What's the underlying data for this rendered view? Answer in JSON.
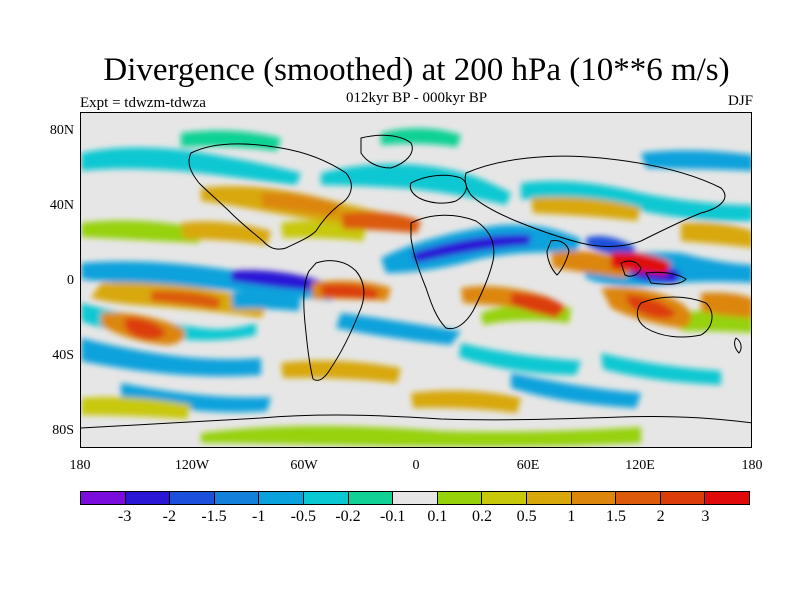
{
  "title": "Divergence (smoothed) at 200 hPa (10**6 m/s)",
  "subtitle": "012kyr BP - 000kyr BP",
  "experiment": "Expt = tdwzm-tdwza",
  "season": "DJF",
  "map": {
    "latitude_labels": [
      "80N",
      "40N",
      "0",
      "40S",
      "80S"
    ],
    "longitude_labels": [
      "180",
      "120W",
      "60W",
      "0",
      "60E",
      "120E",
      "180"
    ],
    "background_color": "#e6e6e6"
  },
  "colorbar": {
    "colors": [
      "#7a0cdc",
      "#2a17d6",
      "#1c50dc",
      "#1380dc",
      "#0aa2dc",
      "#0ac8d2",
      "#11d294",
      "#e6e6e6",
      "#96d20a",
      "#c8c80a",
      "#d8a80a",
      "#dc860a",
      "#dc5a0a",
      "#dc3c0a",
      "#e00a0a"
    ],
    "labels": [
      "-3",
      "-2",
      "-1.5",
      "-1",
      "-0.5",
      "-0.2",
      "-0.1",
      "0.1",
      "0.2",
      "0.5",
      "1",
      "1.5",
      "2",
      "3"
    ]
  }
}
